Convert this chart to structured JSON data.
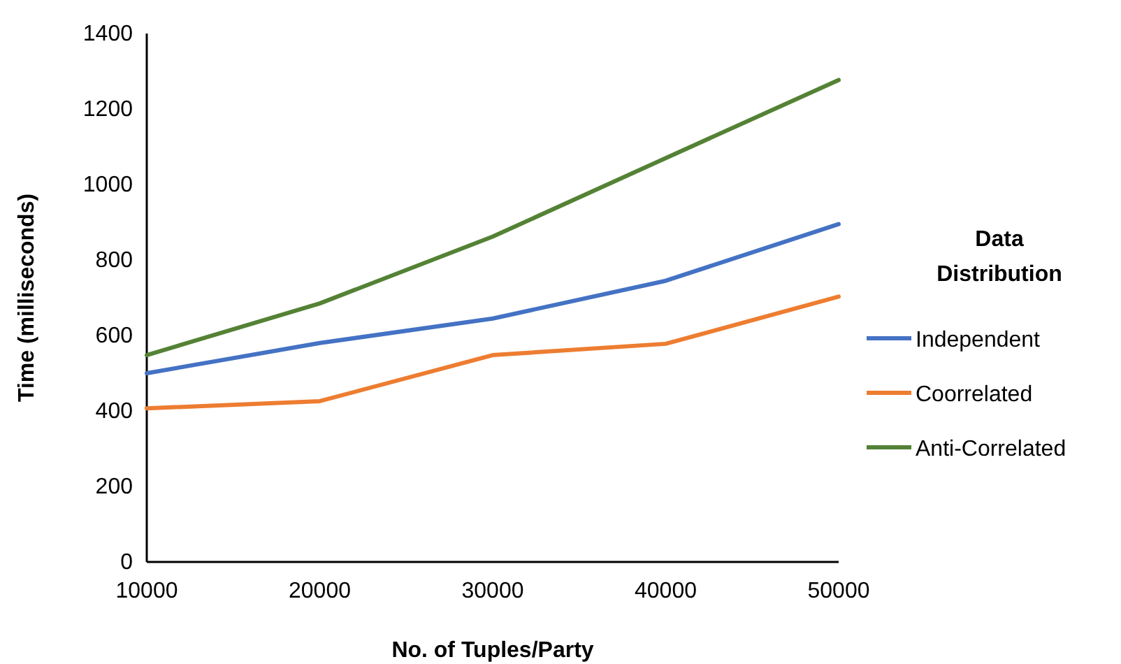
{
  "chart_data": {
    "type": "line",
    "xlabel": "No. of Tuples/Party",
    "ylabel": "Time (milliseconds)",
    "legend_title": "Data Distribution",
    "legend": "right",
    "grid": false,
    "x": [
      10000,
      20000,
      30000,
      40000,
      50000
    ],
    "xlim": [
      10000,
      50000
    ],
    "xticks": [
      10000,
      20000,
      30000,
      40000,
      50000
    ],
    "ylim": [
      0,
      1400
    ],
    "yticks": [
      0,
      200,
      400,
      600,
      800,
      1000,
      1200,
      1400
    ],
    "series": [
      {
        "name": "Independent",
        "color": "#4472c4",
        "values": [
          500,
          580,
          645,
          745,
          895
        ]
      },
      {
        "name": "Coorrelated",
        "color": "#ed7d31",
        "values": [
          407,
          426,
          548,
          578,
          703
        ]
      },
      {
        "name": "Anti-Correlated",
        "color": "#548235",
        "values": [
          548,
          685,
          862,
          1070,
          1277
        ]
      }
    ]
  }
}
